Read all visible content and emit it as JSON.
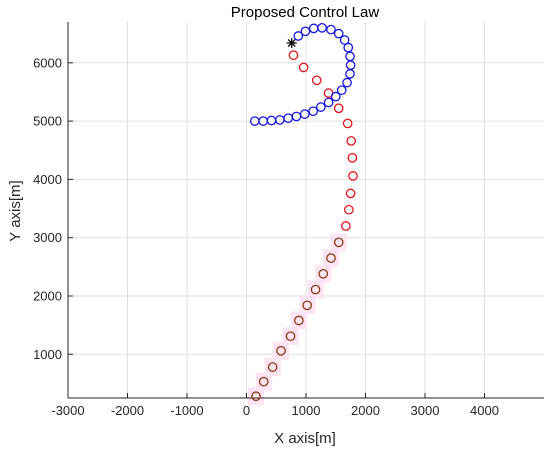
{
  "chart_data": {
    "type": "scatter",
    "title": "Proposed Control Law",
    "xlabel": "X axis[m]",
    "ylabel": "Y axis[m]",
    "xlim": [
      -3000,
      5000
    ],
    "ylim": [
      250,
      6700
    ],
    "grid": true,
    "x_ticks": [
      -3000,
      -2000,
      -1000,
      0,
      1000,
      2000,
      3000,
      4000
    ],
    "y_ticks": [
      1000,
      2000,
      3000,
      4000,
      5000,
      6000
    ],
    "x_tick_labels": [
      "-3000",
      "-2000",
      "-1000",
      "0",
      "1000",
      "2000",
      "3000",
      "4000"
    ],
    "y_tick_labels": [
      "1000",
      "2000",
      "3000",
      "4000",
      "5000",
      "6000"
    ],
    "series": [
      {
        "color": "#8B3A0F",
        "marker": "circle-open",
        "points": [
          [
            160,
            280
          ],
          [
            290,
            530
          ],
          [
            440,
            780
          ],
          [
            580,
            1060
          ],
          [
            740,
            1310
          ],
          [
            880,
            1580
          ],
          [
            1020,
            1840
          ],
          [
            1160,
            2110
          ],
          [
            1290,
            2380
          ],
          [
            1420,
            2650
          ],
          [
            1550,
            2920
          ]
        ]
      },
      {
        "color": "#E0151B",
        "marker": "circle-open",
        "points": [
          [
            1670,
            3200
          ],
          [
            1720,
            3480
          ],
          [
            1750,
            3760
          ],
          [
            1790,
            4060
          ],
          [
            1780,
            4370
          ],
          [
            1760,
            4660
          ],
          [
            1700,
            4960
          ],
          [
            1550,
            5220
          ],
          [
            1380,
            5480
          ],
          [
            1180,
            5700
          ],
          [
            960,
            5920
          ],
          [
            790,
            6130
          ]
        ]
      },
      {
        "color": "#1414DC",
        "marker": "circle-open",
        "points": [
          [
            140,
            5000
          ],
          [
            280,
            5000
          ],
          [
            420,
            5010
          ],
          [
            560,
            5020
          ],
          [
            700,
            5050
          ],
          [
            840,
            5080
          ],
          [
            980,
            5120
          ],
          [
            1120,
            5170
          ],
          [
            1250,
            5240
          ],
          [
            1380,
            5320
          ],
          [
            1500,
            5420
          ],
          [
            1600,
            5530
          ],
          [
            1690,
            5660
          ],
          [
            1740,
            5810
          ],
          [
            1750,
            5960
          ],
          [
            1740,
            6110
          ],
          [
            1710,
            6260
          ],
          [
            1650,
            6390
          ],
          [
            1550,
            6500
          ],
          [
            1420,
            6570
          ],
          [
            1270,
            6600
          ],
          [
            1130,
            6590
          ],
          [
            990,
            6540
          ],
          [
            870,
            6460
          ]
        ]
      }
    ],
    "start_marker": {
      "marker": "asterisk",
      "color": "#000000",
      "point": [
        760,
        6340
      ]
    }
  }
}
